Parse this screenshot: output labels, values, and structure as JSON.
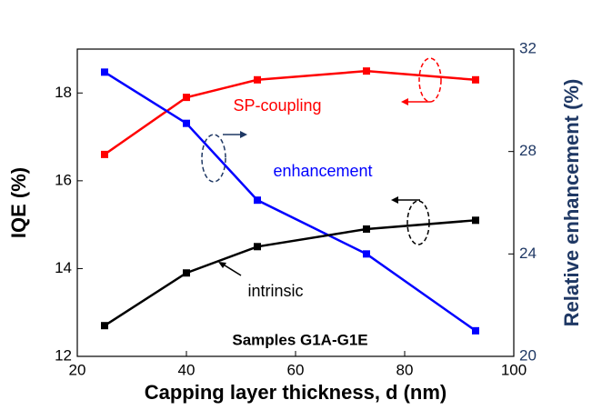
{
  "chart_data": {
    "type": "line",
    "xlabel": "Capping layer thickness, d (nm)",
    "ylabel": "IQE (%)",
    "y2label": "Relative enhancement (%)",
    "annotation": "Samples G1A-G1E",
    "x": [
      25,
      40,
      53,
      73,
      93
    ],
    "series": [
      {
        "name": "SP-coupling",
        "color": "#ff0000",
        "values": [
          16.6,
          17.9,
          18.3,
          18.5,
          18.3
        ]
      },
      {
        "name": "enhancement",
        "color": "#0000ff",
        "axis": "y2",
        "values": [
          31.1,
          29.1,
          26.1,
          24.0,
          21.0
        ]
      },
      {
        "name": "intrinsic",
        "color": "#000000",
        "values": [
          12.7,
          13.9,
          14.5,
          14.9,
          15.1
        ]
      }
    ],
    "xlim": [
      20,
      100
    ],
    "xticks": [
      20,
      40,
      60,
      80,
      100
    ],
    "ylim": [
      12,
      19
    ],
    "yticks": [
      12,
      14,
      16,
      18
    ],
    "y2lim": [
      20,
      32
    ],
    "y2ticks": [
      20,
      24,
      28,
      32
    ],
    "y2color": "#1f3864"
  }
}
